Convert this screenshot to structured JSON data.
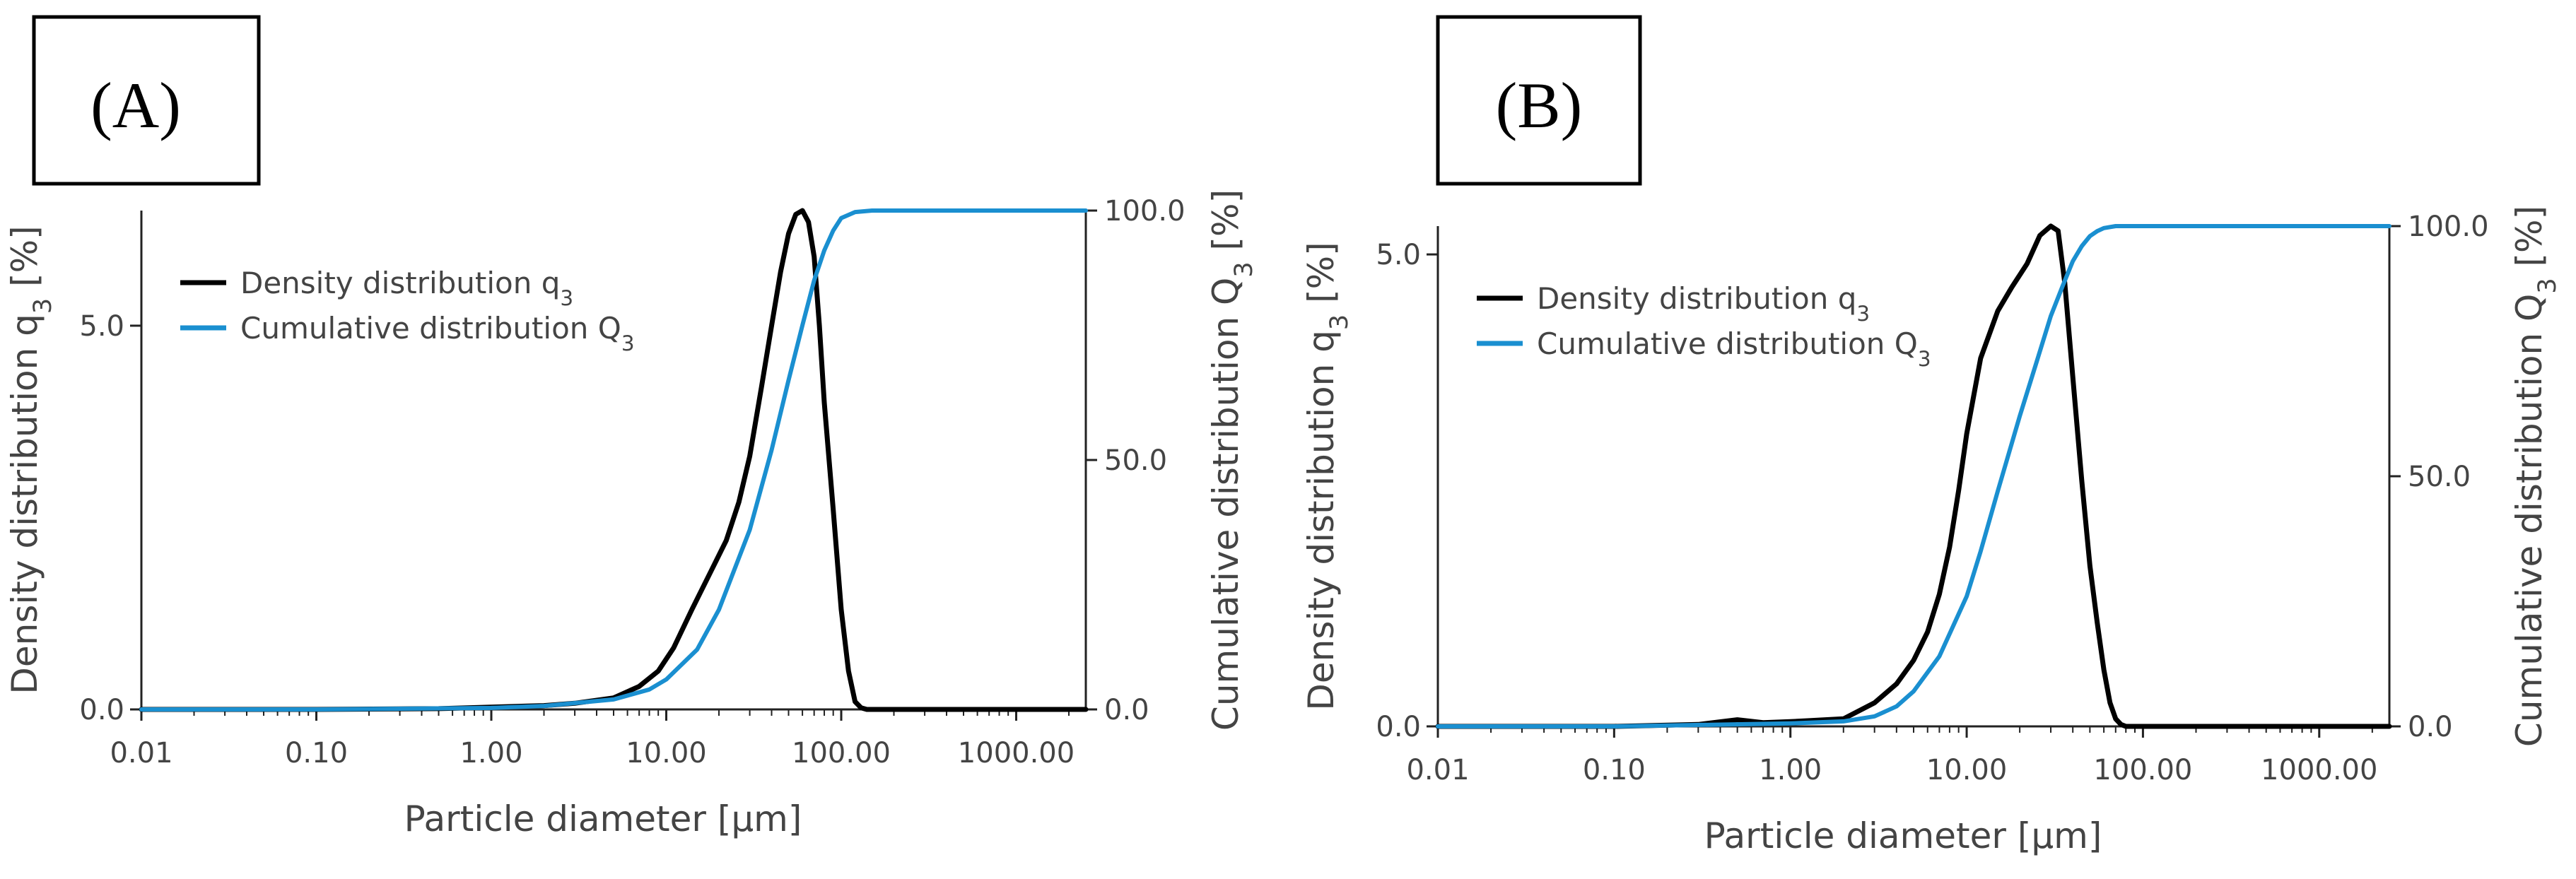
{
  "figure": {
    "panels": [
      {
        "label": "(A)"
      },
      {
        "label": "(B)"
      }
    ]
  },
  "colors": {
    "density": "#000000",
    "cumulative": "#1a8fd0",
    "axis": "#222222",
    "text": "#444444"
  },
  "chart_data": [
    {
      "type": "line",
      "panel": "(A)",
      "title": "",
      "xlabel": "Particle diameter [µm]",
      "ylabel": "Density distribution q₃ [%]",
      "y2label": "Cumulative distribution Q₃ [%]",
      "xscale": "log",
      "xlim": [
        0.01,
        2500
      ],
      "ylim": [
        0,
        6.5
      ],
      "y2lim": [
        0,
        100
      ],
      "xticks": [
        0.01,
        0.1,
        1,
        10,
        100,
        1000
      ],
      "xtick_labels": [
        "0.01",
        "0.10",
        "1.00",
        "10.00",
        "100.00",
        "1000.00"
      ],
      "yticks": [
        0,
        5
      ],
      "ytick_labels": [
        "0.0",
        "5.0"
      ],
      "y2ticks": [
        0,
        50,
        100
      ],
      "y2tick_labels": [
        "0.0",
        "50.0",
        "100.0"
      ],
      "legend_position": "top-left",
      "series": [
        {
          "name": "Density distribution q₃",
          "axis": "left",
          "color": "#000000",
          "x": [
            0.01,
            0.1,
            0.5,
            1,
            2,
            3,
            5,
            7,
            9,
            11,
            14,
            18,
            22,
            26,
            30,
            35,
            40,
            45,
            50,
            55,
            60,
            65,
            70,
            75,
            80,
            90,
            100,
            110,
            120,
            130,
            140,
            200,
            1000,
            2500
          ],
          "y": [
            0,
            0,
            0.01,
            0.03,
            0.05,
            0.08,
            0.15,
            0.3,
            0.5,
            0.8,
            1.3,
            1.8,
            2.2,
            2.7,
            3.3,
            4.2,
            5.0,
            5.7,
            6.2,
            6.45,
            6.5,
            6.35,
            5.9,
            5.0,
            4.0,
            2.6,
            1.3,
            0.5,
            0.1,
            0.02,
            0,
            0,
            0,
            0
          ]
        },
        {
          "name": "Cumulative distribution Q₃",
          "axis": "right",
          "color": "#1a8fd0",
          "x": [
            0.01,
            0.1,
            1,
            2,
            5,
            8,
            10,
            15,
            20,
            30,
            40,
            50,
            60,
            70,
            80,
            90,
            100,
            120,
            150,
            300,
            1000,
            2500
          ],
          "y": [
            0,
            0,
            0.3,
            0.7,
            2,
            4,
            6,
            12,
            20,
            36,
            52,
            66,
            77,
            86,
            92,
            96,
            98.5,
            99.7,
            100,
            100,
            100,
            100
          ]
        }
      ]
    },
    {
      "type": "line",
      "panel": "(B)",
      "title": "",
      "xlabel": "Particle diameter [µm]",
      "ylabel": "Density distribution q₃ [%]",
      "y2label": "Cumulative distribution Q₃ [%]",
      "xscale": "log",
      "xlim": [
        0.01,
        2500
      ],
      "ylim": [
        0,
        5.3
      ],
      "y2lim": [
        0,
        100
      ],
      "xticks": [
        0.01,
        0.1,
        1,
        10,
        100,
        1000
      ],
      "xtick_labels": [
        "0.01",
        "0.10",
        "1.00",
        "10.00",
        "100.00",
        "1000.00"
      ],
      "yticks": [
        0,
        5
      ],
      "ytick_labels": [
        "0.0",
        "5.0"
      ],
      "y2ticks": [
        0,
        50,
        100
      ],
      "y2tick_labels": [
        "0.0",
        "50.0",
        "100.0"
      ],
      "legend_position": "top-left",
      "series": [
        {
          "name": "Density distribution q₃",
          "axis": "left",
          "color": "#000000",
          "x": [
            0.01,
            0.1,
            0.3,
            0.5,
            0.7,
            1,
            2,
            3,
            4,
            5,
            6,
            7,
            8,
            9,
            10,
            12,
            15,
            18,
            22,
            26,
            30,
            33,
            36,
            40,
            45,
            50,
            55,
            60,
            65,
            70,
            75,
            80,
            90,
            100,
            1000,
            2500
          ],
          "y": [
            0,
            0,
            0.02,
            0.07,
            0.04,
            0.05,
            0.08,
            0.25,
            0.45,
            0.7,
            1.0,
            1.4,
            1.9,
            2.5,
            3.1,
            3.9,
            4.4,
            4.65,
            4.9,
            5.2,
            5.3,
            5.25,
            4.7,
            3.7,
            2.6,
            1.7,
            1.1,
            0.6,
            0.25,
            0.08,
            0.02,
            0,
            0,
            0,
            0,
            0
          ]
        },
        {
          "name": "Cumulative distribution Q₃",
          "axis": "right",
          "color": "#1a8fd0",
          "x": [
            0.01,
            0.1,
            1,
            2,
            3,
            4,
            5,
            7,
            10,
            12,
            15,
            20,
            25,
            30,
            35,
            40,
            45,
            50,
            55,
            60,
            70,
            80,
            100,
            1000,
            2500
          ],
          "y": [
            0,
            0,
            0.6,
            1,
            2,
            4,
            7,
            14,
            26,
            35,
            47,
            62,
            73,
            82,
            88,
            93,
            96,
            98,
            99,
            99.6,
            100,
            100,
            100,
            100,
            100
          ]
        }
      ]
    }
  ]
}
